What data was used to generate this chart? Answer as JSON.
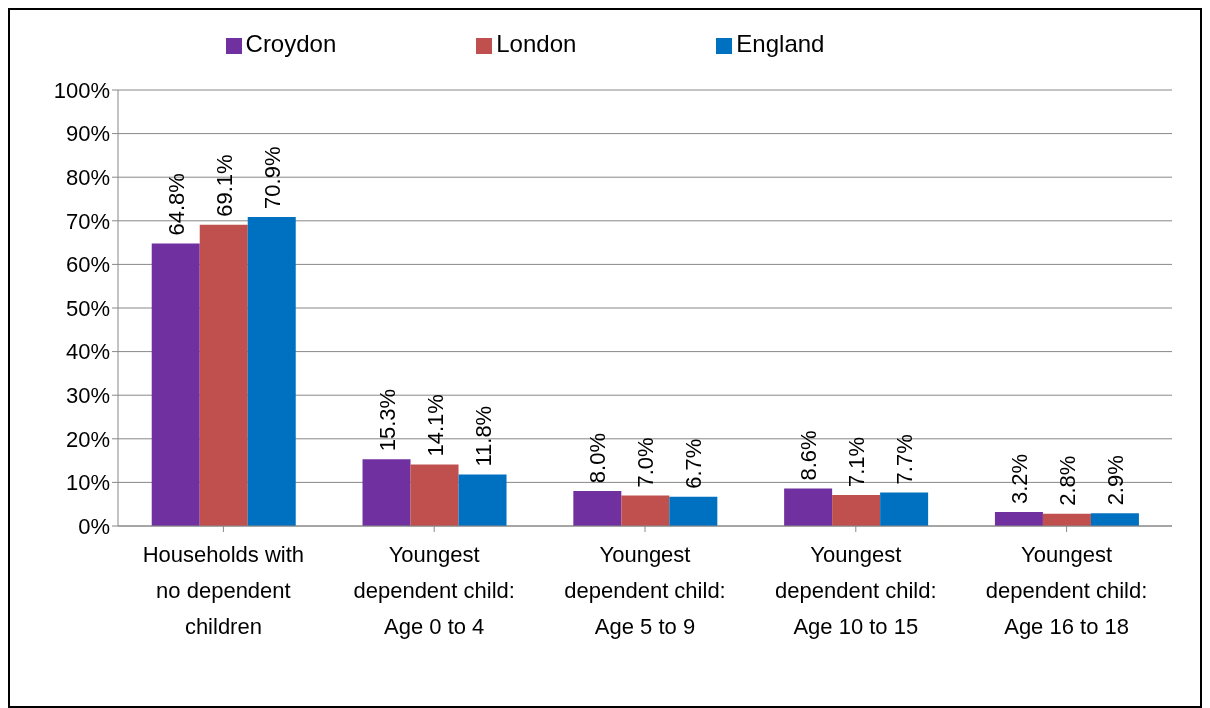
{
  "chart_data": {
    "type": "bar",
    "categories": [
      "Households with no dependent children",
      "Youngest dependent child: Age 0 to 4",
      "Youngest dependent child: Age 5 to 9",
      "Youngest dependent child: Age 10 to 15",
      "Youngest dependent child: Age 16 to 18"
    ],
    "series": [
      {
        "name": "Croydon",
        "color": "#7030a0",
        "values": [
          64.8,
          15.3,
          8.0,
          8.6,
          3.2
        ],
        "value_labels": [
          "64.8%",
          "15.3%",
          "8.0%",
          "8.6%",
          "3.2%"
        ]
      },
      {
        "name": "London",
        "color": "#c0504d",
        "values": [
          69.1,
          14.1,
          7.0,
          7.1,
          2.8
        ],
        "value_labels": [
          "69.1%",
          "14.1%",
          "7.0%",
          "7.1%",
          "2.8%"
        ]
      },
      {
        "name": "England",
        "color": "#0070c0",
        "values": [
          70.9,
          11.8,
          6.7,
          7.7,
          2.9
        ],
        "value_labels": [
          "70.9%",
          "11.8%",
          "6.7%",
          "7.7%",
          "2.9%"
        ]
      }
    ],
    "ylim": [
      0,
      100
    ],
    "yticks": [
      {
        "value": 0,
        "label": "0%"
      },
      {
        "value": 10,
        "label": "10%"
      },
      {
        "value": 20,
        "label": "20%"
      },
      {
        "value": 30,
        "label": "30%"
      },
      {
        "value": 40,
        "label": "40%"
      },
      {
        "value": 50,
        "label": "50%"
      },
      {
        "value": 60,
        "label": "60%"
      },
      {
        "value": 70,
        "label": "70%"
      },
      {
        "value": 80,
        "label": "80%"
      },
      {
        "value": 90,
        "label": "90%"
      },
      {
        "value": 100,
        "label": "100%"
      }
    ],
    "grid": "y",
    "legend": "top"
  }
}
